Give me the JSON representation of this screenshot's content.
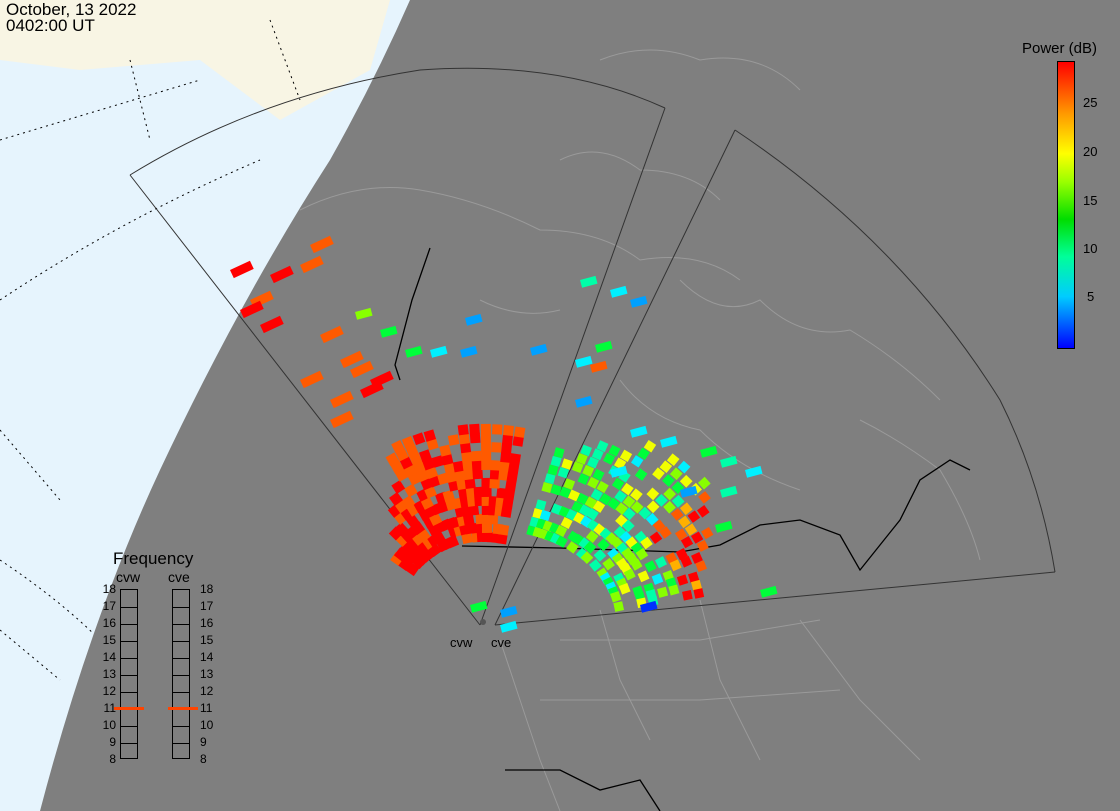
{
  "header": {
    "date": "October, 13 2022",
    "time": "0402:00 UT"
  },
  "sites": {
    "west": "cvw",
    "east": "cve"
  },
  "colorbar": {
    "title": "Power (dB)",
    "ticks": [
      "25",
      "20",
      "15",
      "10",
      "5"
    ],
    "min": 0,
    "max": 29
  },
  "frequency": {
    "title": "Frequency",
    "columns": [
      "cvw",
      "cve"
    ],
    "scale": [
      "18",
      "17",
      "16",
      "15",
      "14",
      "13",
      "12",
      "11",
      "10",
      "9",
      "8"
    ],
    "current": {
      "cvw": 11,
      "cve": 11
    }
  },
  "colors": {
    "night": "#7f7f7f",
    "ocean_day": "#e6f4fd",
    "land_day": "#f8f5e4",
    "border": "#000000",
    "outline": "#aaaaaa"
  }
}
